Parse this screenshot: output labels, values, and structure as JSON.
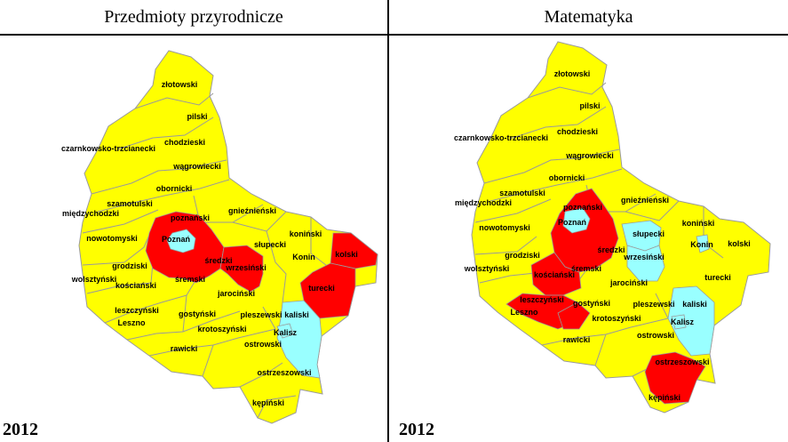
{
  "panels": [
    {
      "title": "Przedmioty przyrodnicze",
      "year": "2012",
      "labels": [
        "złotowski",
        "pilski",
        "chodzieski",
        "czarnkowsko-trzcianecki",
        "wągrowiecki",
        "obornicki",
        "szamotulski",
        "międzychodzki",
        "gnieźnieński",
        "poznański",
        "Poznań",
        "koniński",
        "nowotomyski",
        "słupecki",
        "Konin",
        "kolski",
        "grodziski",
        "średzki",
        "wrzesiński",
        "wolsztyński",
        "kościański",
        "śremski",
        "turecki",
        "jarociński",
        "leszczyński",
        "Leszno",
        "gostyński",
        "pleszewski",
        "kaliski",
        "krotoszyński",
        "Kalisz",
        "rawicki",
        "ostrowski",
        "ostrzeszowski",
        "kępiński"
      ],
      "regions": {
        "red": [
          "poznański",
          "wrzesiński",
          "kolski",
          "turecki"
        ],
        "cyan": [
          "Poznań",
          "kaliski",
          "Kalisz"
        ]
      }
    },
    {
      "title": "Matematyka",
      "year": "2012",
      "labels": [
        "złotowski",
        "pilski",
        "chodzieski",
        "czarnkowsko-trzcianecki",
        "wągrowiecki",
        "obornicki",
        "szamotulski",
        "międzychodzki",
        "gnieźnieński",
        "poznański",
        "Poznań",
        "koniński",
        "nowotomyski",
        "słupecki",
        "Konin",
        "kolski",
        "grodziski",
        "średzki",
        "wrzesiński",
        "wolsztyński",
        "kościański",
        "śremski",
        "turecki",
        "jarociński",
        "leszczyński",
        "Leszno",
        "gostyński",
        "pleszewski",
        "kaliski",
        "krotoszyński",
        "Kalisz",
        "rawicki",
        "ostrowski",
        "ostrzeszowski",
        "kępiński"
      ],
      "regions": {
        "red": [
          "poznański",
          "kościański",
          "leszczyński",
          "gostyński",
          "ostrzeszowski"
        ],
        "cyan": [
          "Poznań",
          "słupecki",
          "wrzesiński",
          "Konin",
          "kaliski",
          "Kalisz"
        ]
      }
    }
  ],
  "colors": {
    "base": "#ffff00",
    "red": "#ff0000",
    "cyan": "#99ffff",
    "border": "#9a9a9a"
  }
}
